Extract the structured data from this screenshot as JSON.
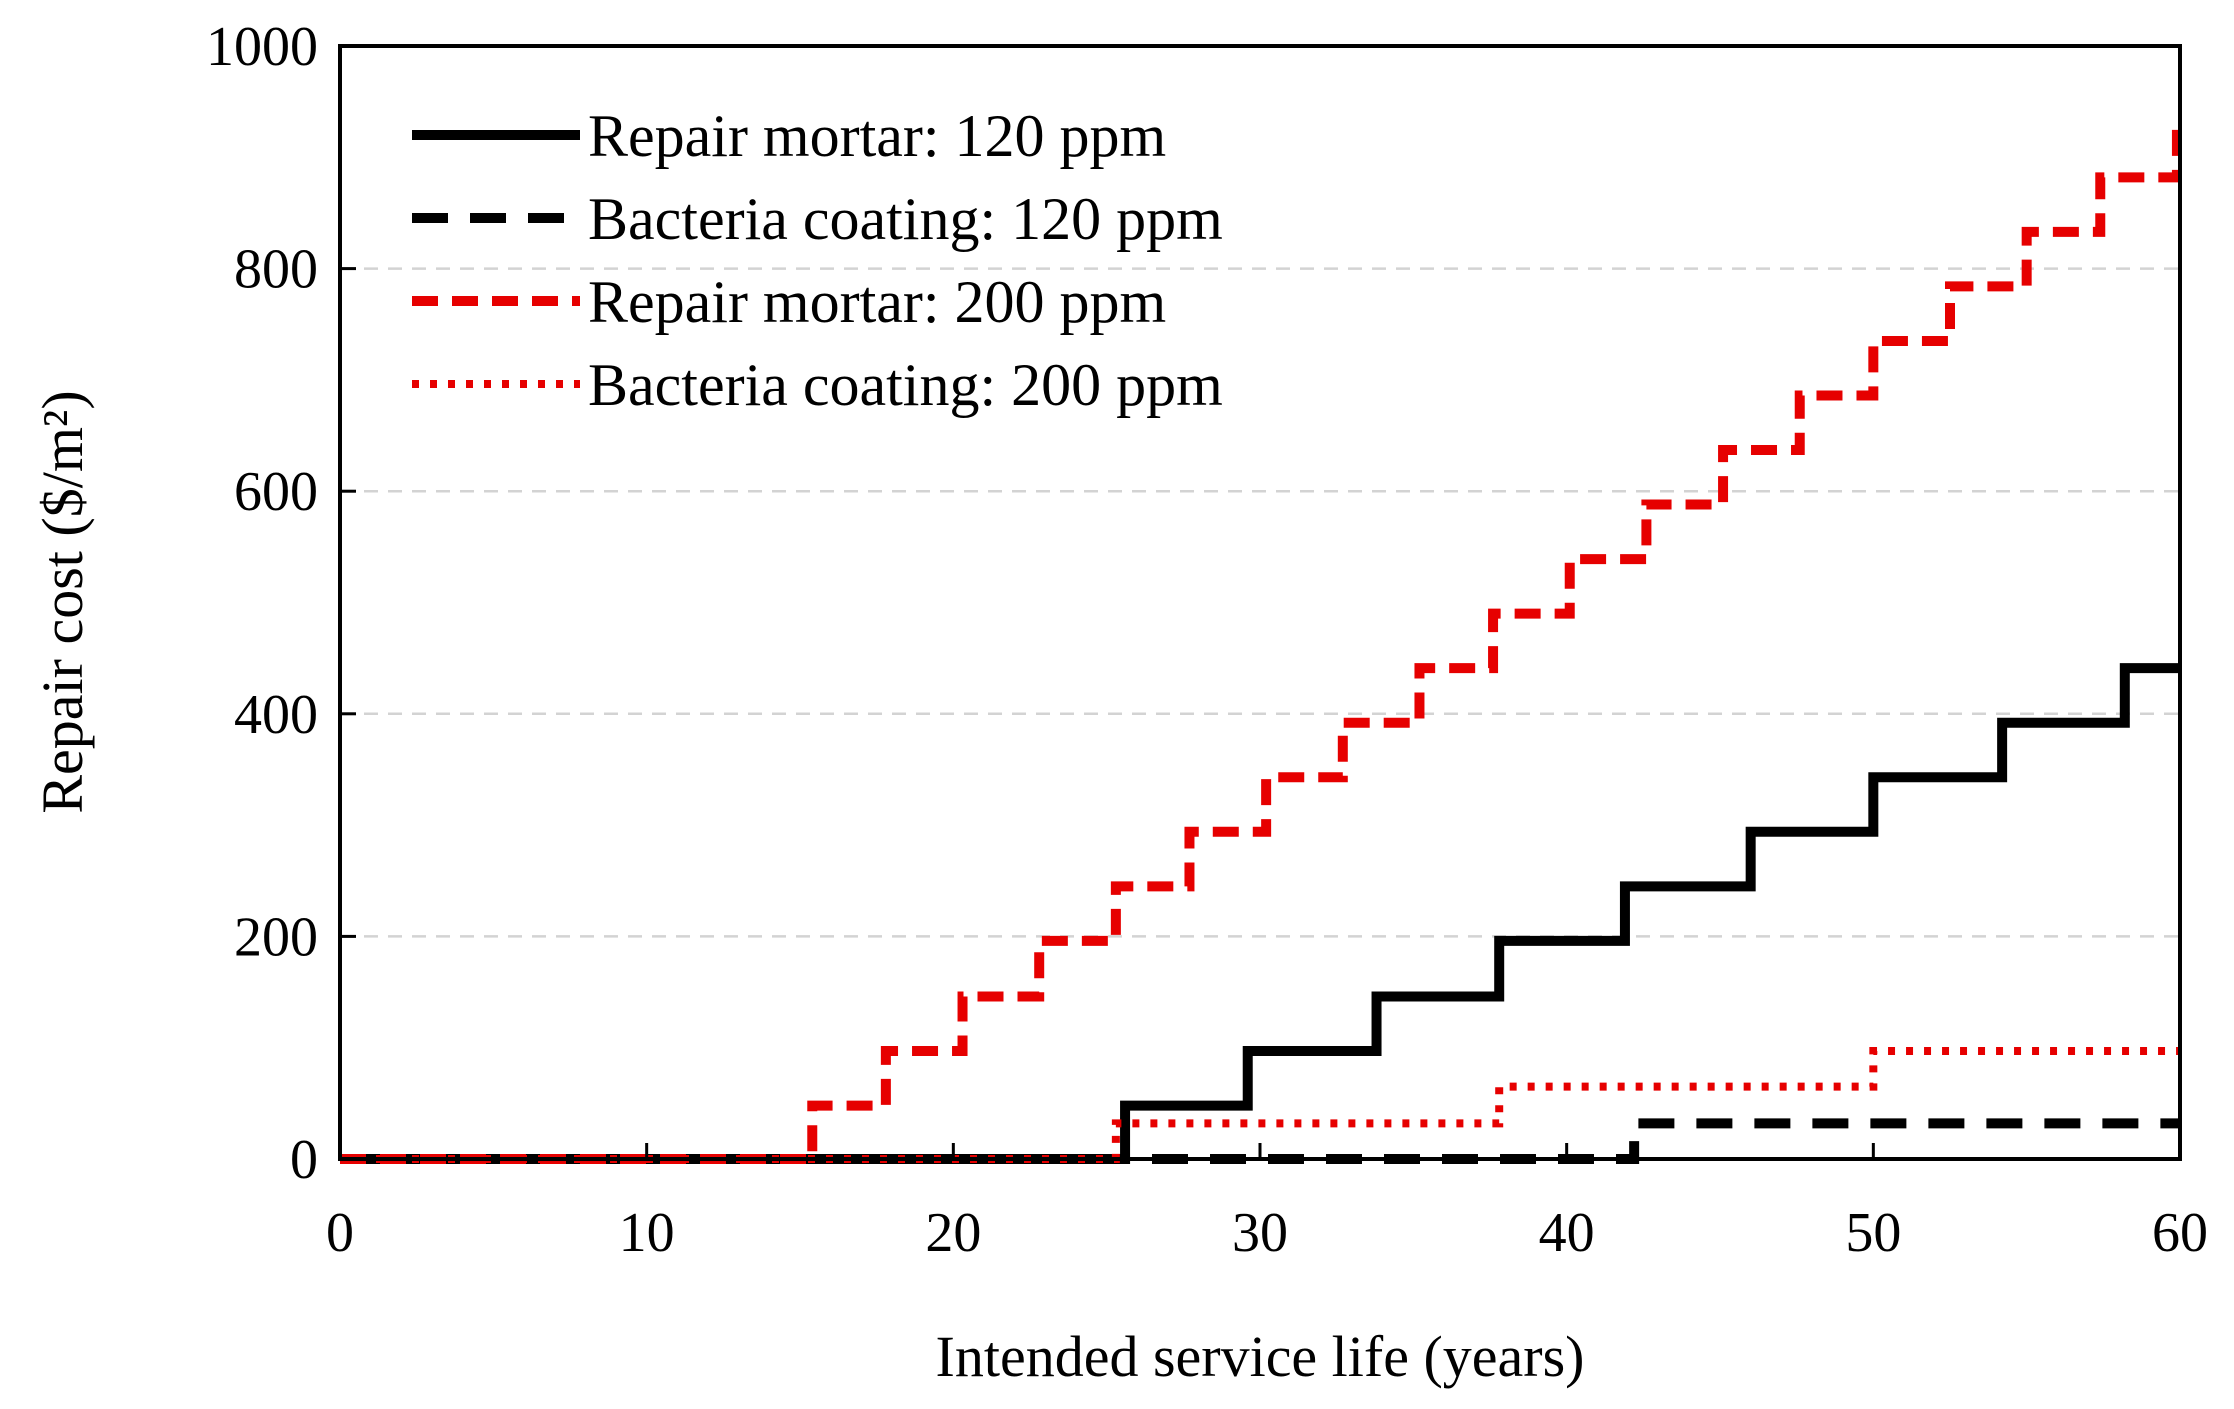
{
  "chart_data": {
    "type": "line",
    "step": true,
    "title": "",
    "xlabel": "Intended service life (years)",
    "ylabel": "Repair cost ($/m²)",
    "xlim": [
      0,
      60
    ],
    "ylim": [
      0,
      1000
    ],
    "xticks": [
      "0",
      "10",
      "20",
      "30",
      "40",
      "50",
      "60"
    ],
    "yticks": [
      "0",
      "200",
      "400",
      "600",
      "800",
      "1000"
    ],
    "grid": "horizontal dashed",
    "legend_position": "top-left",
    "series": [
      {
        "name": "Repair mortar: 120 ppm",
        "color": "#000000",
        "style": "solid",
        "x": [
          0,
          25.6,
          29.6,
          33.8,
          37.8,
          41.9,
          46.0,
          50.0,
          54.2,
          58.2,
          60
        ],
        "y": [
          0,
          48,
          97,
          146,
          196,
          245,
          294,
          343,
          392,
          441,
          441
        ]
      },
      {
        "name": "Bacteria coating: 120 ppm",
        "color": "#000000",
        "style": "dashed",
        "x": [
          0,
          42.2,
          60
        ],
        "y": [
          0,
          32,
          32
        ]
      },
      {
        "name": "Repair mortar: 200 ppm",
        "color": "#e60000",
        "style": "dashed",
        "x": [
          0,
          15.4,
          17.8,
          20.3,
          22.8,
          25.3,
          27.7,
          30.2,
          32.7,
          35.2,
          37.6,
          40.1,
          42.6,
          45.1,
          47.6,
          50.0,
          52.5,
          55.0,
          57.4,
          59.9,
          60
        ],
        "y": [
          0,
          48,
          97,
          146,
          196,
          245,
          294,
          343,
          392,
          441,
          490,
          539,
          588,
          637,
          686,
          735,
          784,
          833,
          882,
          931,
          931
        ]
      },
      {
        "name": "Bacteria coating: 200 ppm",
        "color": "#e60000",
        "style": "dotted",
        "x": [
          0,
          25.3,
          37.8,
          50.0,
          60
        ],
        "y": [
          0,
          32,
          65,
          97,
          97
        ]
      }
    ]
  }
}
